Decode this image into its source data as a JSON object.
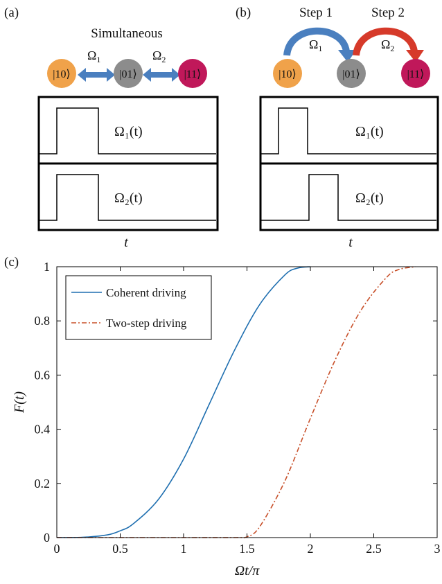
{
  "panels": {
    "a": {
      "label": "(a)",
      "title": "Simultaneous",
      "omega1": "Ω",
      "omega1_sub": "1",
      "omega2": "Ω",
      "omega2_sub": "2",
      "states": [
        "|10⟩",
        "|01⟩",
        "|11⟩"
      ],
      "pulse1_label": "Ω₁(t)",
      "pulse2_label": "Ω₂(t)",
      "time_label": "t"
    },
    "b": {
      "label": "(b)",
      "step1": "Step 1",
      "step2": "Step 2",
      "omega1": "Ω",
      "omega1_sub": "1",
      "omega2": "Ω",
      "omega2_sub": "2",
      "states": [
        "|10⟩",
        "|01⟩",
        "|11⟩"
      ],
      "pulse1_label": "Ω₁(t)",
      "pulse2_label": "Ω₂(t)",
      "time_label": "t"
    },
    "c": {
      "label": "(c)"
    }
  },
  "colors": {
    "state10": "#f0a24a",
    "state01": "#8c8c8c",
    "state11": "#c0185a",
    "arrow_blue": "#4a7fbf",
    "arrow_red": "#d63a2a",
    "coherent": "#1f6fb0",
    "twostep": "#c8502a"
  },
  "chart_data": {
    "type": "line",
    "xlabel": "Ωt/π",
    "ylabel": "F(t)",
    "xlim": [
      0,
      3
    ],
    "ylim": [
      0,
      1
    ],
    "xticks": [
      0,
      0.5,
      1,
      1.5,
      2,
      2.5,
      3
    ],
    "xtick_labels": [
      "0",
      "0.5",
      "1",
      "1.5",
      "2",
      "2.5",
      "3"
    ],
    "yticks": [
      0,
      0.2,
      0.4,
      0.6,
      0.8,
      1
    ],
    "ytick_labels": [
      "0",
      "0.2",
      "0.4",
      "0.6",
      "0.8",
      "1"
    ],
    "grid": false,
    "legend_position": "top-left",
    "series": [
      {
        "name": "Coherent driving",
        "style": "solid",
        "x": [
          0,
          0.2,
          0.4,
          0.5,
          0.6,
          0.8,
          1.0,
          1.2,
          1.4,
          1.6,
          1.8,
          1.9,
          2.0
        ],
        "y": [
          0,
          0.001,
          0.01,
          0.025,
          0.05,
          0.14,
          0.29,
          0.49,
          0.69,
          0.86,
          0.97,
          0.995,
          1.0
        ]
      },
      {
        "name": "Two-step driving",
        "style": "dash-dot",
        "x": [
          0,
          0.5,
          1.0,
          1.414,
          1.5,
          1.6,
          1.8,
          2.0,
          2.2,
          2.4,
          2.6,
          2.7,
          2.828
        ],
        "y": [
          0,
          0,
          0,
          0,
          0.003,
          0.04,
          0.21,
          0.44,
          0.66,
          0.84,
          0.96,
          0.99,
          1.0
        ]
      }
    ]
  }
}
